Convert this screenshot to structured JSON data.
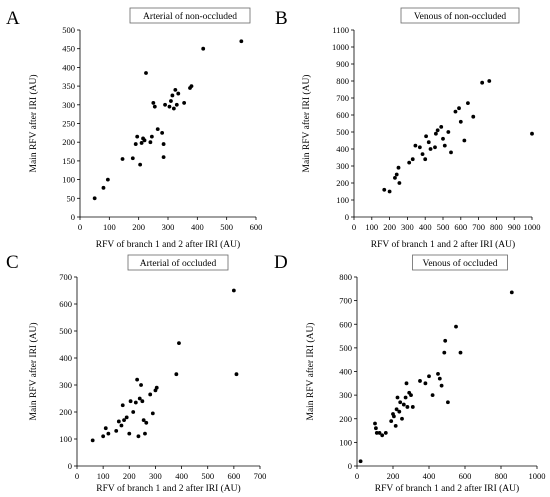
{
  "chart_data": [
    {
      "type": "scatter",
      "panel_label": "A",
      "title": "Arterial of non-occluded",
      "xlabel": "RFV of branch 1 and 2 after IRI (AU)",
      "ylabel": "Main RFV after IRI (AU)",
      "xlim": [
        0,
        600
      ],
      "ylim": [
        0,
        500
      ],
      "xticks": [
        0,
        100,
        200,
        300,
        400,
        500,
        600
      ],
      "yticks": [
        0,
        50,
        100,
        150,
        200,
        250,
        300,
        350,
        400,
        450,
        500
      ],
      "points": [
        [
          50,
          50
        ],
        [
          80,
          78
        ],
        [
          95,
          100
        ],
        [
          145,
          155
        ],
        [
          180,
          157
        ],
        [
          190,
          195
        ],
        [
          195,
          215
        ],
        [
          205,
          140
        ],
        [
          210,
          198
        ],
        [
          215,
          210
        ],
        [
          220,
          205
        ],
        [
          225,
          385
        ],
        [
          240,
          200
        ],
        [
          245,
          215
        ],
        [
          250,
          305
        ],
        [
          255,
          295
        ],
        [
          265,
          235
        ],
        [
          280,
          225
        ],
        [
          285,
          160
        ],
        [
          285,
          195
        ],
        [
          290,
          300
        ],
        [
          305,
          295
        ],
        [
          310,
          310
        ],
        [
          315,
          325
        ],
        [
          320,
          290
        ],
        [
          325,
          340
        ],
        [
          330,
          300
        ],
        [
          335,
          330
        ],
        [
          355,
          305
        ],
        [
          375,
          345
        ],
        [
          380,
          350
        ],
        [
          420,
          450
        ],
        [
          550,
          470
        ]
      ]
    },
    {
      "type": "scatter",
      "panel_label": "B",
      "title": "Venous of non-occluded",
      "xlabel": "RFV of branch 1 and 2 after IRI (AU)",
      "ylabel": "Main RFV after IRI (AU)",
      "xlim": [
        0,
        1000
      ],
      "ylim": [
        0,
        1100
      ],
      "xticks": [
        0,
        100,
        200,
        300,
        400,
        500,
        600,
        700,
        800,
        900,
        1000
      ],
      "yticks": [
        0,
        100,
        200,
        300,
        400,
        500,
        600,
        700,
        800,
        900,
        1000,
        1100
      ],
      "points": [
        [
          170,
          160
        ],
        [
          200,
          150
        ],
        [
          230,
          230
        ],
        [
          240,
          250
        ],
        [
          250,
          290
        ],
        [
          255,
          200
        ],
        [
          310,
          320
        ],
        [
          330,
          340
        ],
        [
          345,
          420
        ],
        [
          370,
          410
        ],
        [
          385,
          370
        ],
        [
          400,
          340
        ],
        [
          405,
          475
        ],
        [
          420,
          440
        ],
        [
          430,
          400
        ],
        [
          455,
          410
        ],
        [
          460,
          490
        ],
        [
          470,
          510
        ],
        [
          490,
          530
        ],
        [
          500,
          460
        ],
        [
          510,
          420
        ],
        [
          530,
          500
        ],
        [
          545,
          380
        ],
        [
          570,
          620
        ],
        [
          590,
          640
        ],
        [
          600,
          560
        ],
        [
          620,
          450
        ],
        [
          640,
          670
        ],
        [
          670,
          590
        ],
        [
          720,
          790
        ],
        [
          760,
          800
        ],
        [
          1000,
          490
        ]
      ]
    },
    {
      "type": "scatter",
      "panel_label": "C",
      "title": "Arterial of occluded",
      "xlabel": "RFV of branch 1 and 2 after IRI (AU)",
      "ylabel": "Main RFV after IRI (AU)",
      "xlim": [
        0,
        700
      ],
      "ylim": [
        0,
        700
      ],
      "xticks": [
        0,
        100,
        200,
        300,
        400,
        500,
        600,
        700
      ],
      "yticks": [
        0,
        100,
        200,
        300,
        400,
        500,
        600,
        700
      ],
      "points": [
        [
          60,
          95
        ],
        [
          100,
          110
        ],
        [
          110,
          140
        ],
        [
          120,
          120
        ],
        [
          150,
          130
        ],
        [
          160,
          165
        ],
        [
          170,
          150
        ],
        [
          175,
          225
        ],
        [
          180,
          170
        ],
        [
          190,
          180
        ],
        [
          200,
          120
        ],
        [
          205,
          240
        ],
        [
          215,
          200
        ],
        [
          225,
          235
        ],
        [
          230,
          320
        ],
        [
          235,
          110
        ],
        [
          240,
          250
        ],
        [
          245,
          300
        ],
        [
          250,
          240
        ],
        [
          255,
          170
        ],
        [
          260,
          120
        ],
        [
          265,
          160
        ],
        [
          280,
          265
        ],
        [
          290,
          195
        ],
        [
          300,
          280
        ],
        [
          305,
          290
        ],
        [
          380,
          340
        ],
        [
          390,
          455
        ],
        [
          600,
          650
        ],
        [
          610,
          340
        ]
      ]
    },
    {
      "type": "scatter",
      "panel_label": "D",
      "title": "Venous of occluded",
      "xlabel": "RFV of branch 1 and 2 after IRI (AU)",
      "ylabel": "Main RFV after IRI (AU)",
      "xlim": [
        0,
        1000
      ],
      "ylim": [
        0,
        800
      ],
      "xticks": [
        0,
        200,
        400,
        600,
        800,
        1000
      ],
      "yticks": [
        0,
        100,
        200,
        300,
        400,
        500,
        600,
        700,
        800
      ],
      "points": [
        [
          20,
          20
        ],
        [
          100,
          180
        ],
        [
          105,
          160
        ],
        [
          110,
          140
        ],
        [
          125,
          140
        ],
        [
          140,
          130
        ],
        [
          160,
          140
        ],
        [
          190,
          190
        ],
        [
          200,
          220
        ],
        [
          205,
          210
        ],
        [
          215,
          170
        ],
        [
          220,
          240
        ],
        [
          225,
          290
        ],
        [
          235,
          230
        ],
        [
          240,
          270
        ],
        [
          250,
          200
        ],
        [
          260,
          260
        ],
        [
          270,
          290
        ],
        [
          275,
          350
        ],
        [
          280,
          250
        ],
        [
          290,
          310
        ],
        [
          300,
          300
        ],
        [
          310,
          250
        ],
        [
          350,
          360
        ],
        [
          380,
          350
        ],
        [
          400,
          380
        ],
        [
          420,
          300
        ],
        [
          450,
          390
        ],
        [
          460,
          370
        ],
        [
          470,
          340
        ],
        [
          485,
          480
        ],
        [
          490,
          530
        ],
        [
          505,
          270
        ],
        [
          550,
          590
        ],
        [
          575,
          480
        ],
        [
          860,
          735
        ]
      ]
    }
  ]
}
